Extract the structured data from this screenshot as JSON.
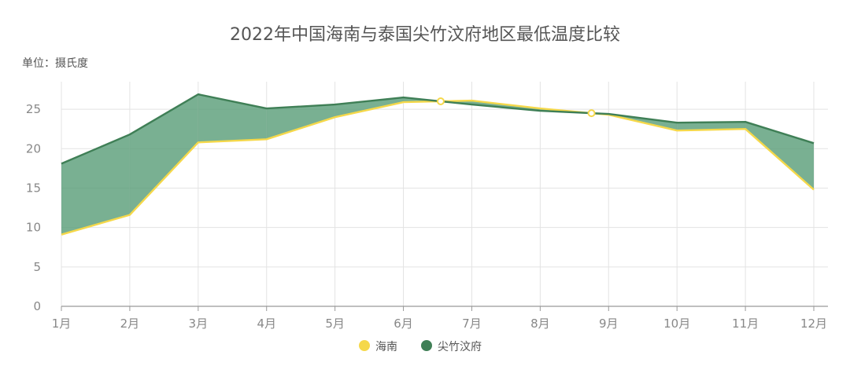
{
  "chart_data": {
    "type": "area",
    "title": "2022年中国海南与泰国尖竹汶府地区最低温度比较",
    "unit_label": "单位：摄氏度",
    "xlabel": "",
    "ylabel": "",
    "categories": [
      "1月",
      "2月",
      "3月",
      "4月",
      "5月",
      "6月",
      "7月",
      "8月",
      "9月",
      "10月",
      "11月",
      "12月"
    ],
    "ylim": [
      0,
      28.5
    ],
    "yticks": [
      0,
      5,
      10,
      15,
      20,
      25
    ],
    "grid": true,
    "legend_position": "bottom",
    "series": [
      {
        "name": "海南",
        "color": "#f5d84a",
        "values": [
          9.1,
          11.6,
          20.8,
          21.2,
          24.0,
          25.9,
          26.1,
          25.1,
          24.3,
          22.3,
          22.5,
          14.8
        ]
      },
      {
        "name": "尖竹汶府",
        "color": "#3f7f56",
        "values": [
          18.1,
          21.8,
          26.9,
          25.1,
          25.6,
          26.5,
          25.6,
          24.8,
          24.4,
          23.3,
          23.4,
          20.7
        ]
      }
    ],
    "fill_color": "#5c9f7a"
  }
}
